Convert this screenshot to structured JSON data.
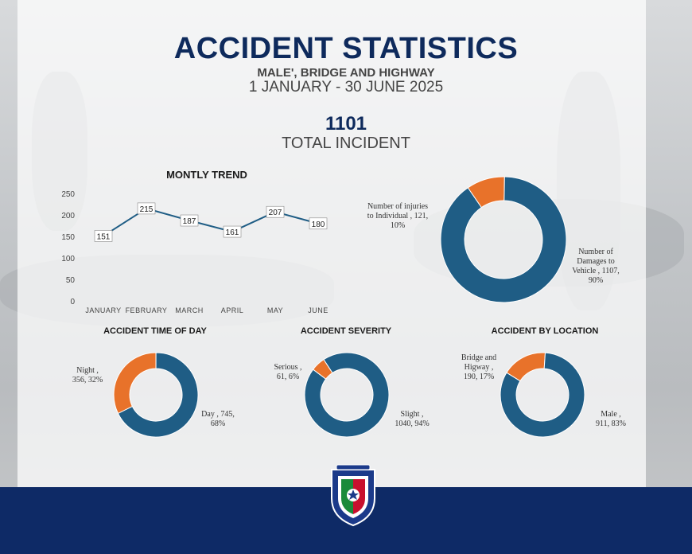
{
  "header": {
    "title": "ACCIDENT STATISTICS",
    "subtitle": "MALE', BRIDGE AND HIGHWAY",
    "date_range": "1 JANUARY - 30 JUNE 2025",
    "total_value": "1101",
    "total_label": "TOTAL INCIDENT"
  },
  "colors": {
    "navy": "#0e2a5c",
    "blue": "#1f5d85",
    "orange": "#e8722a",
    "footer": "#0e2a66"
  },
  "chart_data": [
    {
      "type": "line",
      "title": "MONTLY TREND",
      "categories": [
        "JANUARY",
        "FEBRUARY",
        "MARCH",
        "APRIL",
        "MAY",
        "JUNE"
      ],
      "values": [
        151,
        215,
        187,
        161,
        207,
        180
      ],
      "ylim": [
        0,
        250
      ],
      "yticks": [
        "250",
        "200",
        "150",
        "100",
        "50",
        "0"
      ],
      "grid": false
    },
    {
      "type": "pie",
      "title": "",
      "labels": [
        "Number of injuries to Individual",
        "Number of Damages to Vehicle"
      ],
      "values": [
        121,
        1107
      ],
      "percents": [
        10,
        90
      ],
      "label_text": [
        "Number of injuries\nto Individual , 121,\n10%",
        "Number of\nDamages to\nVehicle , 1107,\n90%"
      ]
    },
    {
      "type": "pie",
      "title": "ACCIDENT TIME OF DAY",
      "labels": [
        "Night",
        "Day"
      ],
      "values": [
        356,
        745
      ],
      "percents": [
        32,
        68
      ],
      "label_text": [
        "Night ,\n356, 32%",
        "Day , 745,\n68%"
      ]
    },
    {
      "type": "pie",
      "title": "ACCIDENT SEVERITY",
      "labels": [
        "Serious",
        "Slight"
      ],
      "values": [
        61,
        1040
      ],
      "percents": [
        6,
        94
      ],
      "label_text": [
        "Serious ,\n61, 6%",
        "Slight ,\n1040, 94%"
      ]
    },
    {
      "type": "pie",
      "title": "ACCIDENT BY LOCATION",
      "labels": [
        "Bridge and Higway",
        "Male"
      ],
      "values": [
        190,
        911
      ],
      "percents": [
        17,
        83
      ],
      "label_text": [
        "Bridge and\nHigway ,\n190, 17%",
        "Male ,\n911, 83%"
      ]
    }
  ]
}
